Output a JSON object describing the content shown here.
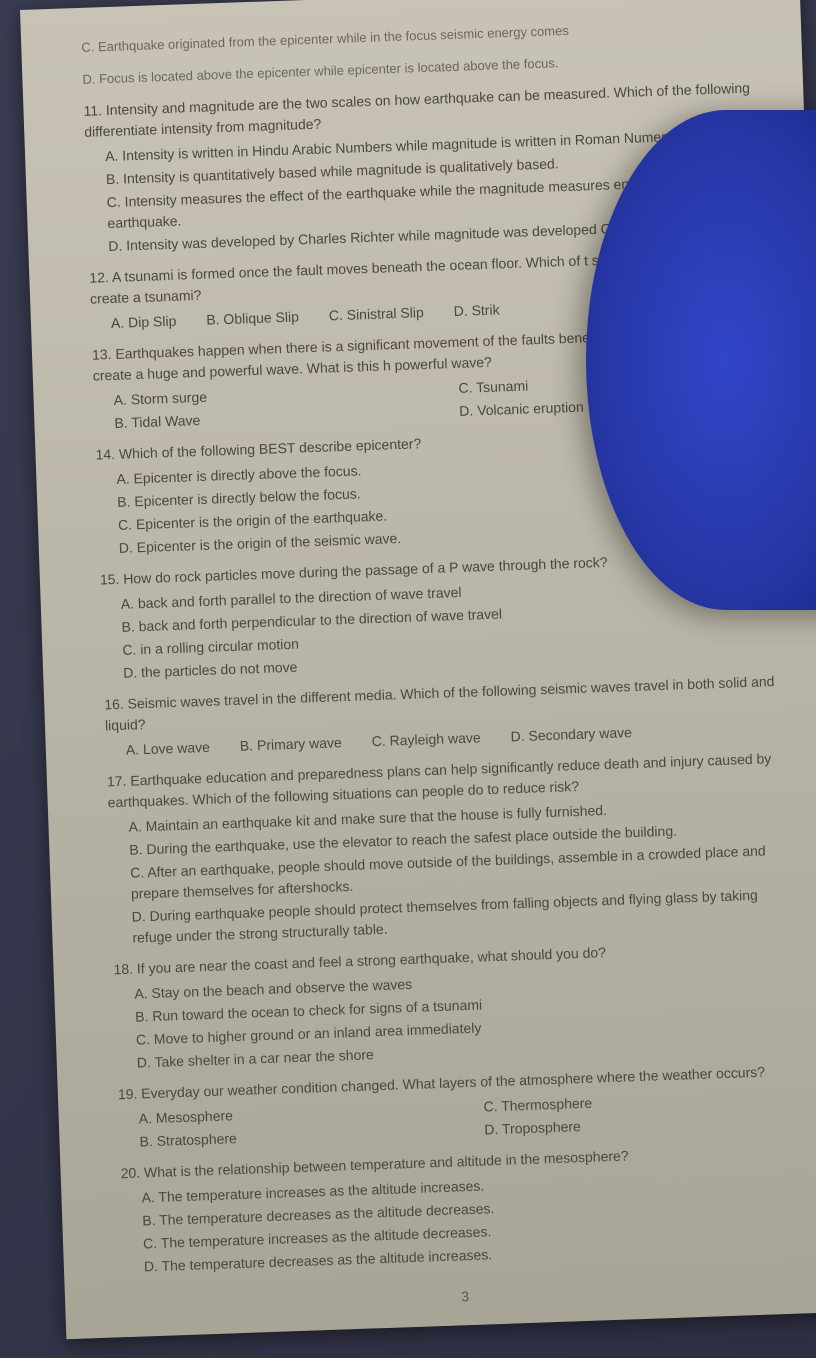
{
  "page": {
    "background_colors": [
      "#3a3d52",
      "#2d2f42"
    ],
    "paper_color": "#c8c3b5",
    "text_color": "#4a4640",
    "overlay_color": "#3145c8",
    "font_size": 14
  },
  "top_options": {
    "c": "C. Earthquake originated from the epicenter while in the focus seismic energy comes",
    "d": "D. Focus is located above the epicenter while epicenter is located above the focus."
  },
  "q11": {
    "text": "11. Intensity and magnitude are the two scales on how earthquake can be measured. Which of the following differentiate intensity from magnitude?",
    "a": "A. Intensity is written in Hindu Arabic Numbers while magnitude is written in Roman Numerals.",
    "b": "B. Intensity is quantitatively based while magnitude is qualitatively based.",
    "c": "C. Intensity measures the effect of the earthquake while the magnitude measures energy of the earthquake.",
    "d": "D. Intensity was developed by Charles Richter while magnitude was developed Giuseppe Mercalli."
  },
  "q12": {
    "text": "12. A tsunami is formed once the fault moves beneath the ocean floor. Which of t slip movement of fault would create a tsunami?",
    "a": "A. Dip Slip",
    "b": "B. Oblique Slip",
    "c": "C. Sinistral Slip",
    "d": "D. Strik"
  },
  "q13": {
    "text": "13. Earthquakes happen when there is a significant movement of the faults bene ocean floor, as a result they create a huge and powerful wave. What is this h powerful wave?",
    "a": "A. Storm surge",
    "b": "B. Tidal Wave",
    "c": "C. Tsunami",
    "d": "D. Volcanic eruption"
  },
  "q14": {
    "text": "14. Which of the following BEST describe epicenter?",
    "a": "A. Epicenter is directly above the focus.",
    "b": "B. Epicenter is directly below the focus.",
    "c": "C. Epicenter is the origin of the earthquake.",
    "d": "D. Epicenter is the origin of the seismic wave."
  },
  "q15": {
    "text": "15. How do rock particles move during the passage of a P wave through the rock?",
    "a": "A. back and forth parallel to the direction of wave travel",
    "b": "B. back and forth perpendicular to the direction of wave travel",
    "c": "C. in a rolling circular motion",
    "d": "D. the particles do not move"
  },
  "q16": {
    "text": "16. Seismic waves travel in the different media. Which of the following seismic waves travel in both solid and liquid?",
    "a": "A. Love wave",
    "b": "B. Primary wave",
    "c": "C. Rayleigh wave",
    "d": "D. Secondary wave"
  },
  "q17": {
    "text": "17. Earthquake education and preparedness plans can help significantly reduce death and injury caused by earthquakes. Which of the following situations can people do to reduce risk?",
    "a": "A. Maintain an earthquake kit and make sure that the house is fully furnished.",
    "b": "B. During the earthquake, use the elevator to reach the safest place outside the building.",
    "c": "C. After an earthquake, people should move outside of the buildings, assemble in a crowded place and prepare themselves for aftershocks.",
    "d": "D. During earthquake people should protect themselves from falling objects and flying glass by taking refuge under the strong structurally table."
  },
  "q18": {
    "text": "18. If you are near the coast and feel a strong earthquake, what should you do?",
    "a": "A. Stay on the beach and observe the waves",
    "b": "B. Run toward the ocean to check for signs of a tsunami",
    "c": "C. Move to higher ground or an inland area immediately",
    "d": "D. Take shelter in a car near the shore"
  },
  "q19": {
    "text": "19. Everyday our weather condition changed. What layers of the atmosphere where the weather occurs?",
    "a": "A. Mesosphere",
    "b": "B. Stratosphere",
    "c": "C. Thermosphere",
    "d": "D. Troposphere"
  },
  "q20": {
    "text": "20. What is the relationship between temperature and altitude in the mesosphere?",
    "a": "A. The temperature increases as the altitude increases.",
    "b": "B. The temperature decreases as the altitude decreases.",
    "c": "C. The temperature increases as the altitude decreases.",
    "d": "D. The temperature decreases as the altitude increases."
  },
  "page_number": "3"
}
